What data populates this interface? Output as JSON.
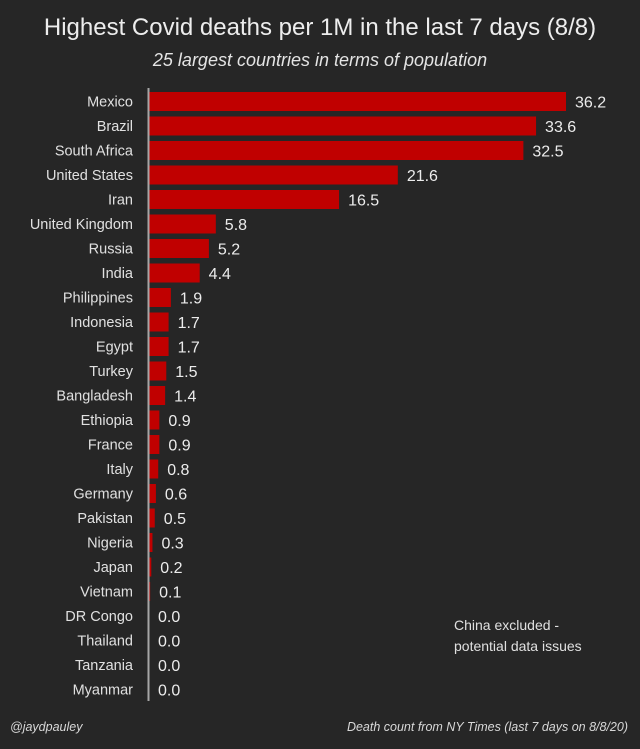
{
  "chart_data": {
    "type": "bar",
    "orientation": "horizontal",
    "title": "Highest Covid deaths per 1M in the last 7 days (8/8)",
    "subtitle": "25 largest countries in terms of population",
    "xlabel": "",
    "ylabel": "",
    "xlim": [
      0,
      36.2
    ],
    "grid": false,
    "categories": [
      "Mexico",
      "Brazil",
      "South Africa",
      "United States",
      "Iran",
      "United Kingdom",
      "Russia",
      "India",
      "Philippines",
      "Indonesia",
      "Egypt",
      "Turkey",
      "Bangladesh",
      "Ethiopia",
      "France",
      "Italy",
      "Germany",
      "Pakistan",
      "Nigeria",
      "Japan",
      "Vietnam",
      "DR Congo",
      "Thailand",
      "Tanzania",
      "Myanmar"
    ],
    "values": [
      36.2,
      33.6,
      32.5,
      21.6,
      16.5,
      5.8,
      5.2,
      4.4,
      1.9,
      1.7,
      1.7,
      1.5,
      1.4,
      0.9,
      0.9,
      0.8,
      0.6,
      0.5,
      0.3,
      0.2,
      0.1,
      0.0,
      0.0,
      0.0,
      0.0
    ],
    "value_labels": [
      "36.2",
      "33.6",
      "32.5",
      "21.6",
      "16.5",
      "5.8",
      "5.2",
      "4.4",
      "1.9",
      "1.7",
      "1.7",
      "1.5",
      "1.4",
      "0.9",
      "0.9",
      "0.8",
      "0.6",
      "0.5",
      "0.3",
      "0.2",
      "0.1",
      "0.0",
      "0.0",
      "0.0",
      "0.0"
    ],
    "annotation": [
      "China excluded -",
      "potential data issues"
    ],
    "bar_color": "#c00000",
    "background": "#262626"
  },
  "footer": {
    "credit": "@jaydpauley",
    "source": "Death count from NY Times (last 7 days on 8/8/20)"
  }
}
